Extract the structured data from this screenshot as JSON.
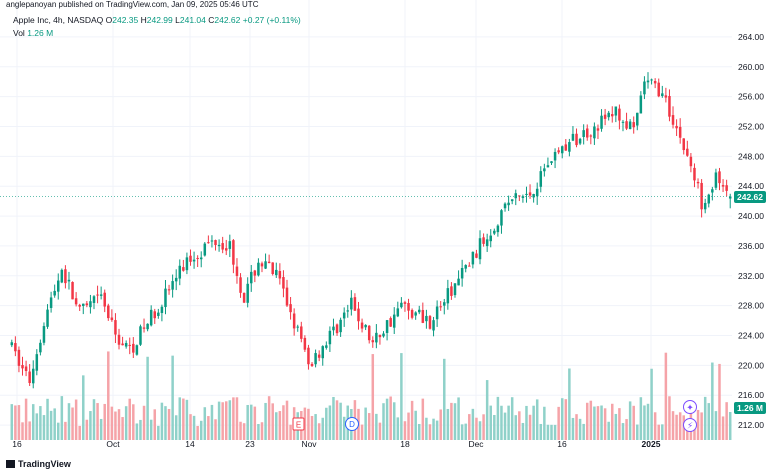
{
  "published": "anglepanoyan published on TradingView.com, Jan 09, 2025 05:46 UTC",
  "legend": {
    "symbol": "Apple Inc, 4h, NASDAQ",
    "o_key": "O",
    "o": "242.35",
    "h_key": "H",
    "h": "242.99",
    "l_key": "L",
    "l": "241.04",
    "c_key": "C",
    "c": "242.62",
    "change": "+0.27 (+0.11%)",
    "vol_key": "Vol",
    "vol": "1.26 M"
  },
  "price_tag": "242.62",
  "volume_tag": "1.26 M",
  "markers": {
    "earnings": "E",
    "dividend": "D"
  },
  "footer": "TradingView",
  "colors": {
    "up": "#089981",
    "down": "#f23645",
    "vol_up": "#8fd1c9",
    "vol_down": "#f5a3a8",
    "grid": "#f0f3fa",
    "price_line": "#089981",
    "marker_purple": "#7c4dff"
  },
  "chart_data": {
    "type": "candlestick",
    "ylim": [
      210,
      266
    ],
    "y_ticks": [
      "264.00",
      "260.00",
      "256.00",
      "252.00",
      "248.00",
      "244.00",
      "240.00",
      "236.00",
      "232.00",
      "228.00",
      "224.00",
      "220.00",
      "216.00",
      "212.00"
    ],
    "x_ticks": [
      "16",
      "Oct",
      "14",
      "23",
      "Nov",
      "18",
      "Dec",
      "16",
      "2025"
    ],
    "anchors": [
      {
        "i": 0,
        "p": 223
      },
      {
        "i": 6,
        "p": 218
      },
      {
        "i": 10,
        "p": 226
      },
      {
        "i": 15,
        "p": 233
      },
      {
        "i": 20,
        "p": 227
      },
      {
        "i": 26,
        "p": 229
      },
      {
        "i": 30,
        "p": 224
      },
      {
        "i": 34,
        "p": 222
      },
      {
        "i": 42,
        "p": 228
      },
      {
        "i": 50,
        "p": 234
      },
      {
        "i": 58,
        "p": 237
      },
      {
        "i": 62,
        "p": 236
      },
      {
        "i": 66,
        "p": 229
      },
      {
        "i": 70,
        "p": 234
      },
      {
        "i": 75,
        "p": 232
      },
      {
        "i": 80,
        "p": 226
      },
      {
        "i": 84,
        "p": 220
      },
      {
        "i": 90,
        "p": 224
      },
      {
        "i": 96,
        "p": 228
      },
      {
        "i": 102,
        "p": 223
      },
      {
        "i": 110,
        "p": 228
      },
      {
        "i": 118,
        "p": 226
      },
      {
        "i": 124,
        "p": 230
      },
      {
        "i": 132,
        "p": 236
      },
      {
        "i": 140,
        "p": 242
      },
      {
        "i": 146,
        "p": 243
      },
      {
        "i": 152,
        "p": 248
      },
      {
        "i": 158,
        "p": 250
      },
      {
        "i": 164,
        "p": 252
      },
      {
        "i": 170,
        "p": 254
      },
      {
        "i": 175,
        "p": 251
      },
      {
        "i": 178,
        "p": 258
      },
      {
        "i": 182,
        "p": 257
      },
      {
        "i": 186,
        "p": 253
      },
      {
        "i": 190,
        "p": 248
      },
      {
        "i": 194,
        "p": 242
      },
      {
        "i": 198,
        "p": 245
      },
      {
        "i": 201,
        "p": 242.3
      }
    ],
    "last_ohlc": {
      "o": 242.35,
      "h": 242.99,
      "l": 241.04,
      "c": 242.62
    },
    "last_volume": "1.26 M"
  }
}
